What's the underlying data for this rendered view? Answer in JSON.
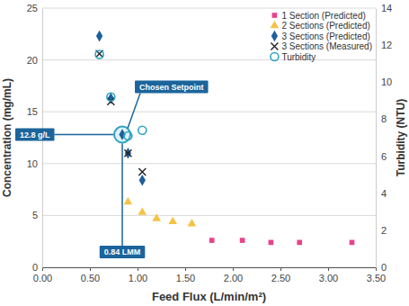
{
  "chart_data": {
    "type": "scatter",
    "xlabel": "Feed Flux (L/min/m²)",
    "ylabel": "Concentration (mg/mL)",
    "y2label": "Turbidity (NTU)",
    "xlim": [
      0,
      3.5
    ],
    "xticks": [
      {
        "value": 0,
        "label": "0.00"
      },
      {
        "value": 0.5,
        "label": "0.50"
      },
      {
        "value": 1,
        "label": "1.00"
      },
      {
        "value": 1.5,
        "label": "1.50"
      },
      {
        "value": 2,
        "label": "2.00"
      },
      {
        "value": 2.5,
        "label": "2.50"
      },
      {
        "value": 3,
        "label": "3.00"
      },
      {
        "value": 3.5,
        "label": "3.50"
      }
    ],
    "ylim": [
      0,
      25
    ],
    "yticks": [
      0,
      5,
      10,
      15,
      20,
      25
    ],
    "y2lim": [
      0,
      14
    ],
    "y2ticks": [
      0,
      2,
      4,
      6,
      8,
      10,
      12,
      14
    ],
    "grid": true,
    "legend": "top-right",
    "series": [
      {
        "name": "1 Section (Predicted)",
        "color": "#e8428c",
        "marker": "square",
        "x": [
          1.78,
          2.1,
          2.4,
          2.7,
          3.25
        ],
        "values": [
          2.6,
          2.6,
          2.4,
          2.4,
          2.4
        ]
      },
      {
        "name": "2 Sections (Predicted)",
        "color": "#f5c344",
        "marker": "triangle",
        "x": [
          0.9,
          1.05,
          1.2,
          1.37,
          1.57
        ],
        "values": [
          6.3,
          5.3,
          4.7,
          4.4,
          4.2
        ]
      },
      {
        "name": "3 Sections (Predicted)",
        "color": "#1f5f9e",
        "marker": "diamond",
        "x": [
          0.6,
          0.72,
          0.84,
          0.9,
          1.05
        ],
        "values": [
          22.3,
          16.3,
          12.8,
          11.0,
          8.4
        ]
      },
      {
        "name": "3 Sections (Measured)",
        "color": "#222222",
        "marker": "x",
        "x": [
          0.6,
          0.72,
          0.9,
          1.05
        ],
        "values": [
          20.6,
          16.0,
          11.0,
          9.2
        ]
      },
      {
        "name": "Turbidity",
        "color": "#2ea3c2",
        "marker": "circle-open",
        "axis": "y2",
        "x": [
          0.6,
          0.72,
          0.9,
          1.05
        ],
        "values": [
          11.5,
          9.2,
          7.1,
          7.4
        ]
      }
    ],
    "annotations": [
      {
        "text": "Chosen Setpoint",
        "x": 0.84,
        "y": 12.8
      },
      {
        "text": "12.8 g/L",
        "x": 0.84,
        "y": 12.8
      },
      {
        "text": "0.84 LMM",
        "x": 0.84,
        "y": 12.8
      }
    ]
  }
}
